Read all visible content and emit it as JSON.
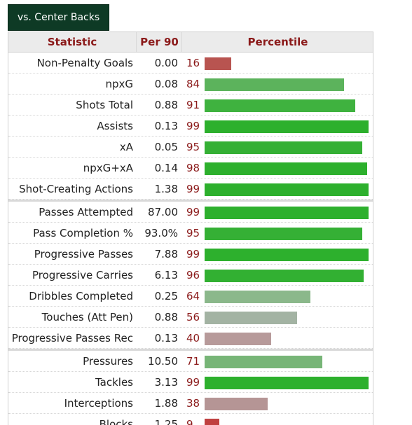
{
  "tab_label": "vs. Center Backs",
  "headers": {
    "statistic": "Statistic",
    "per90": "Per 90",
    "percentile": "Percentile"
  },
  "groups": [
    [
      {
        "name": "Non-Penalty Goals",
        "per90": "0.00",
        "pct": 16,
        "color": "#b85450"
      },
      {
        "name": "npxG",
        "per90": "0.08",
        "pct": 84,
        "color": "#5cb35c"
      },
      {
        "name": "Shots Total",
        "per90": "0.88",
        "pct": 91,
        "color": "#3fb23f"
      },
      {
        "name": "Assists",
        "per90": "0.13",
        "pct": 99,
        "color": "#2db02d"
      },
      {
        "name": "xA",
        "per90": "0.05",
        "pct": 95,
        "color": "#35b035"
      },
      {
        "name": "npxG+xA",
        "per90": "0.14",
        "pct": 98,
        "color": "#2db02d"
      },
      {
        "name": "Shot-Creating Actions",
        "per90": "1.38",
        "pct": 99,
        "color": "#2db02d"
      }
    ],
    [
      {
        "name": "Passes Attempted",
        "per90": "87.00",
        "pct": 99,
        "color": "#2db02d"
      },
      {
        "name": "Pass Completion %",
        "per90": "93.0%",
        "pct": 95,
        "color": "#35b035"
      },
      {
        "name": "Progressive Passes",
        "per90": "7.88",
        "pct": 99,
        "color": "#2db02d"
      },
      {
        "name": "Progressive Carries",
        "per90": "6.13",
        "pct": 96,
        "color": "#32b032"
      },
      {
        "name": "Dribbles Completed",
        "per90": "0.25",
        "pct": 64,
        "color": "#8bb88b"
      },
      {
        "name": "Touches (Att Pen)",
        "per90": "0.88",
        "pct": 56,
        "color": "#a3b3a3"
      },
      {
        "name": "Progressive Passes Rec",
        "per90": "0.13",
        "pct": 40,
        "color": "#b79a9a"
      }
    ],
    [
      {
        "name": "Pressures",
        "per90": "10.50",
        "pct": 71,
        "color": "#77b577"
      },
      {
        "name": "Tackles",
        "per90": "3.13",
        "pct": 99,
        "color": "#2db02d"
      },
      {
        "name": "Interceptions",
        "per90": "1.88",
        "pct": 38,
        "color": "#b59595"
      },
      {
        "name": "Blocks",
        "per90": "1.25",
        "pct": 9,
        "color": "#c04040"
      }
    ]
  ]
}
